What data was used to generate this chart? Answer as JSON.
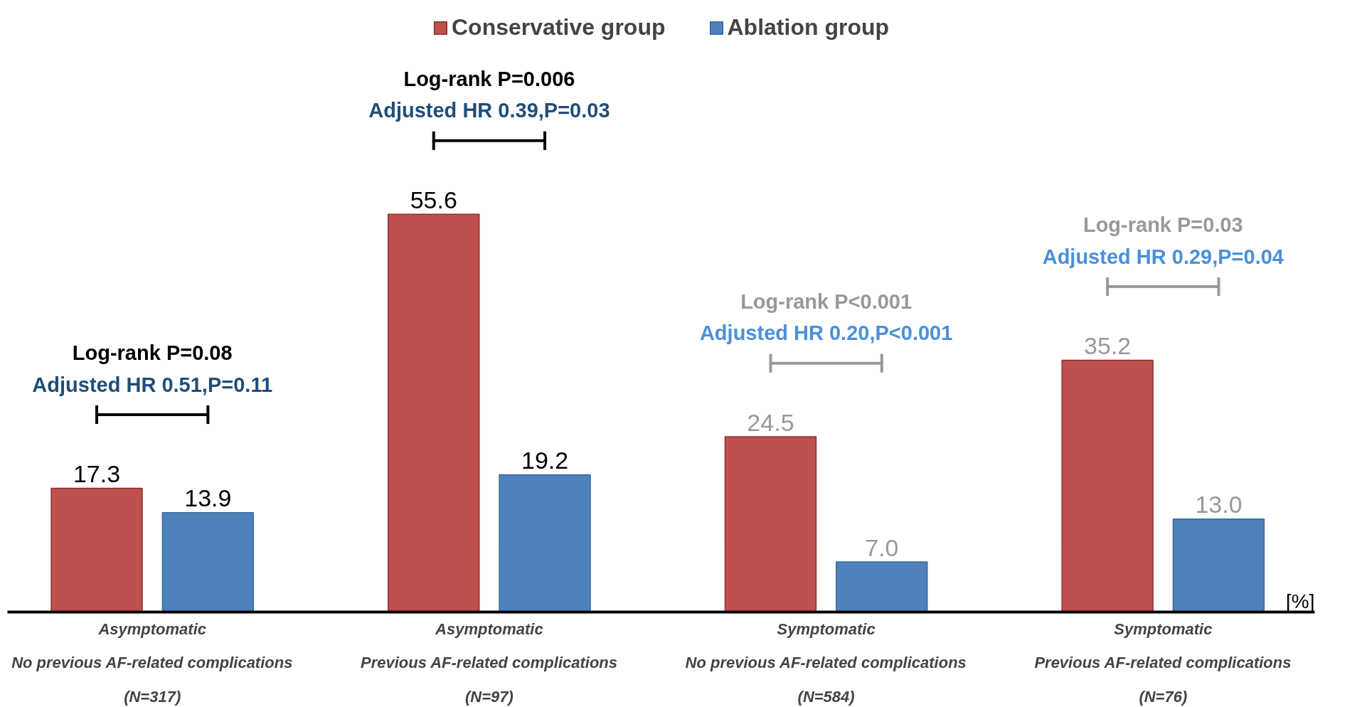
{
  "chart_data": {
    "type": "bar",
    "categories": [
      "Asymptomatic\nNo previous AF-related complications\n(N=317)",
      "Asymptomatic\nPrevious AF-related complications\n(N=97)",
      "Symptomatic\nNo previous AF-related complications\n(N=584)",
      "Symptomatic\nPrevious AF-related complications\n(N=76)"
    ],
    "series": [
      {
        "name": "Conservative group",
        "color": "#c0504d",
        "values": [
          17.3,
          55.6,
          24.5,
          35.2
        ],
        "value_labels": [
          "17.3",
          "55.6",
          "24.5",
          "35.2"
        ]
      },
      {
        "name": "Ablation group",
        "color": "#4f81bd",
        "values": [
          13.9,
          19.2,
          7.0,
          13.0
        ],
        "value_labels": [
          "13.9",
          "19.2",
          "7.0",
          "13.0"
        ]
      }
    ],
    "legend": "top",
    "grid": false,
    "ylabel": "[%]",
    "annotations": [
      "Log-rank P=0.08",
      "Adjusted HR 0.51,P=0.11",
      "Log-rank P=0.006",
      "Adjusted HR 0.39,P=0.03",
      "Log-rank P<0.001",
      "Adjusted HR 0.20,P<0.001",
      "Log-rank P=0.03",
      "Adjusted HR 0.29,P=0.04"
    ]
  }
}
